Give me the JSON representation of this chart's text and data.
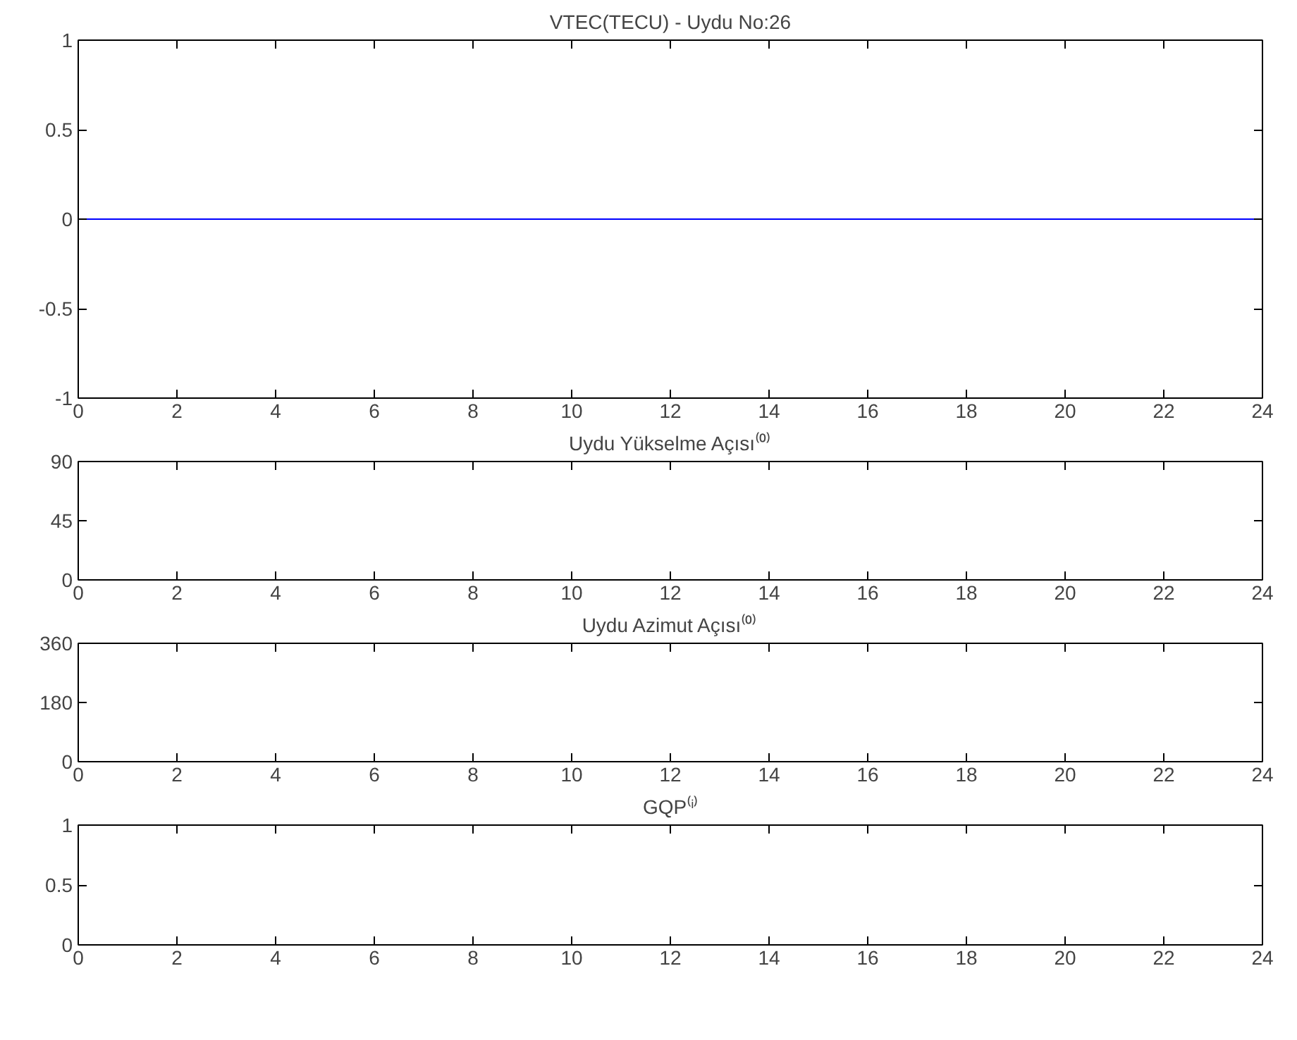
{
  "chart_data": [
    {
      "type": "line",
      "title": "VTEC(TECU) - Uydu No:26",
      "x": [
        0,
        24
      ],
      "xlim": [
        0,
        24
      ],
      "xticks": [
        0,
        2,
        4,
        6,
        8,
        10,
        12,
        14,
        16,
        18,
        20,
        22,
        24
      ],
      "ylim": [
        -1,
        1
      ],
      "yticks": [
        -1,
        -0.5,
        0,
        0.5,
        1
      ],
      "grid": false,
      "series": [
        {
          "color": "#0000ff",
          "values": [
            0,
            0
          ]
        }
      ]
    },
    {
      "type": "line",
      "title": "Uydu Yükselme Açısı⁽⁰⁾",
      "xlim": [
        0,
        24
      ],
      "xticks": [
        0,
        2,
        4,
        6,
        8,
        10,
        12,
        14,
        16,
        18,
        20,
        22,
        24
      ],
      "ylim": [
        0,
        90
      ],
      "yticks": [
        0,
        45,
        90
      ],
      "grid": false
    },
    {
      "type": "line",
      "title": "Uydu Azimut Açısı⁽⁰⁾",
      "xlim": [
        0,
        24
      ],
      "xticks": [
        0,
        2,
        4,
        6,
        8,
        10,
        12,
        14,
        16,
        18,
        20,
        22,
        24
      ],
      "ylim": [
        0,
        360
      ],
      "yticks": [
        0,
        180,
        360
      ],
      "grid": false
    },
    {
      "type": "line",
      "title": "GQP⁽ⁱ⁾",
      "xlim": [
        0,
        24
      ],
      "xticks": [
        0,
        2,
        4,
        6,
        8,
        10,
        12,
        14,
        16,
        18,
        20,
        22,
        24
      ],
      "ylim": [
        0,
        1
      ],
      "yticks": [
        0,
        0.5,
        1
      ],
      "grid": false
    }
  ]
}
